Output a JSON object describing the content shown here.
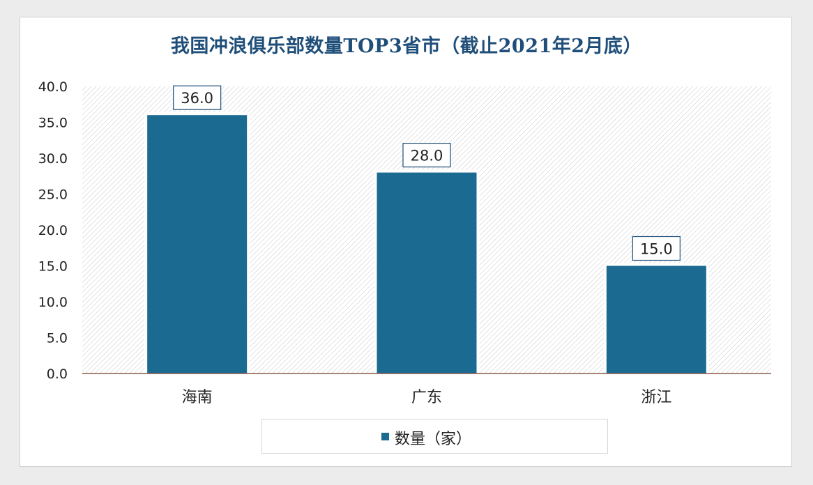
{
  "chart_data": {
    "type": "bar",
    "title": "我国冲浪俱乐部数量TOP3省市（截止2021年2月底）",
    "categories": [
      "海南",
      "广东",
      "浙江"
    ],
    "series": [
      {
        "name": "数量（家）",
        "values": [
          36.0,
          28.0,
          15.0
        ]
      }
    ],
    "data_labels": [
      "36.0",
      "28.0",
      "15.0"
    ],
    "yticks": [
      "0.0",
      "5.0",
      "10.0",
      "15.0",
      "20.0",
      "25.0",
      "30.0",
      "35.0",
      "40.0"
    ],
    "ylim": [
      0,
      40
    ],
    "grid": false,
    "legend_position": "bottom",
    "colors": {
      "bar": "#1b6a91",
      "title": "#1f4e79",
      "axis": "#8b5a4a"
    }
  }
}
